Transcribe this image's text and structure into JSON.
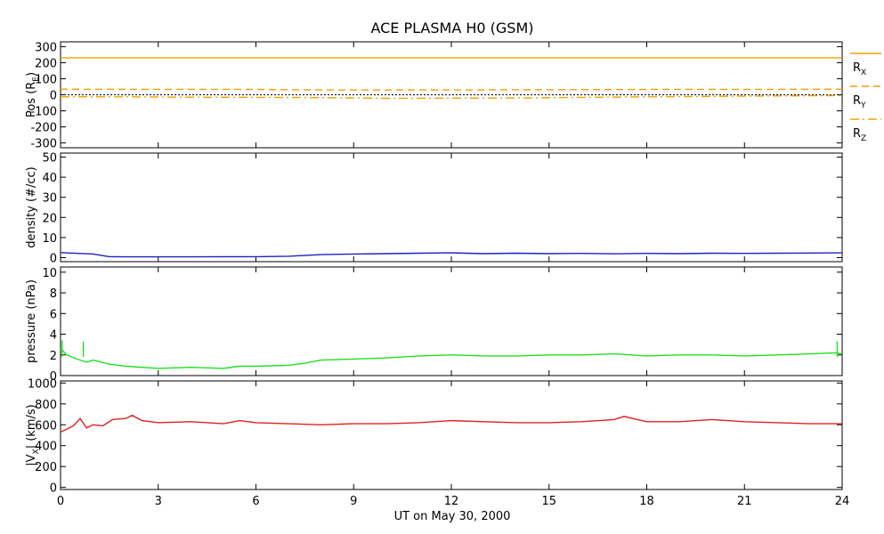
{
  "title": "ACE PLASMA H0 (GSM)",
  "xaxis": {
    "label": "UT on May 30, 2000",
    "range": [
      0,
      24
    ],
    "ticks": [
      0,
      3,
      6,
      9,
      12,
      15,
      18,
      21,
      24
    ],
    "tick_labels": [
      "0",
      "3",
      "6",
      "9",
      "12",
      "15",
      "18",
      "21",
      "24"
    ]
  },
  "legend": [
    {
      "label": "R",
      "sub": "X",
      "color": "#f0a000",
      "style": "solid"
    },
    {
      "label": "R",
      "sub": "Y",
      "color": "#f0a000",
      "style": "dashed"
    },
    {
      "label": "R",
      "sub": "Z",
      "color": "#f0a000",
      "style": "dashdot"
    }
  ],
  "chart_data": [
    {
      "type": "line",
      "ylabel": {
        "main": "Pos (R",
        "sub": "E",
        "tail": ")"
      },
      "ylim": [
        -330,
        330
      ],
      "yticks": [
        -300,
        -200,
        -100,
        0,
        100,
        200,
        300
      ],
      "zero_line": true,
      "series": [
        {
          "name": "RX",
          "color": "#f0a000",
          "style": "solid",
          "x": [
            0,
            24
          ],
          "y": [
            231,
            231
          ]
        },
        {
          "name": "RY",
          "color": "#f0a000",
          "style": "dashed",
          "x": [
            0,
            2,
            4,
            6,
            8,
            10,
            12,
            14,
            16,
            18,
            20,
            22,
            24
          ],
          "y": [
            35,
            34,
            34,
            33,
            30,
            30,
            30,
            31,
            32,
            33,
            34,
            34,
            35
          ]
        },
        {
          "name": "RZ",
          "color": "#f0a000",
          "style": "dashdot",
          "x": [
            0,
            2,
            4,
            6,
            8,
            10,
            12,
            14,
            16,
            18,
            20,
            22,
            24
          ],
          "y": [
            -12,
            -13,
            -15,
            -16,
            -18,
            -22,
            -21,
            -20,
            -16,
            -13,
            -10,
            -7,
            -5
          ]
        }
      ]
    },
    {
      "type": "line",
      "ylabel": {
        "main": "density (#/cc)"
      },
      "ylim": [
        -2,
        52
      ],
      "yticks": [
        0,
        10,
        20,
        30,
        40,
        50
      ],
      "series": [
        {
          "name": "density",
          "color": "#2020c0",
          "x": [
            0,
            1,
            1.5,
            2,
            3,
            4,
            5,
            6,
            7,
            8,
            9,
            10,
            11,
            12,
            13,
            14,
            15,
            16,
            17,
            18,
            19,
            20,
            21,
            22,
            23,
            24
          ],
          "y": [
            2.5,
            1.8,
            0.5,
            0.4,
            0.4,
            0.4,
            0.5,
            0.5,
            0.7,
            1.5,
            1.8,
            2.0,
            2.2,
            2.4,
            2.0,
            2.2,
            2.0,
            2.1,
            1.9,
            2.1,
            2.0,
            2.2,
            2.1,
            2.2,
            2.3,
            2.4
          ]
        }
      ]
    },
    {
      "type": "line",
      "ylabel": {
        "main": "pressure (nPa)"
      },
      "ylim": [
        0,
        10.5
      ],
      "yticks": [
        0,
        2,
        4,
        6,
        8,
        10
      ],
      "series": [
        {
          "name": "pressure",
          "color": "#20e020",
          "x": [
            0,
            0.2,
            0.5,
            0.8,
            1.0,
            1.5,
            2,
            3,
            4,
            5,
            5.5,
            6,
            7,
            7.5,
            8,
            9,
            10,
            11,
            12,
            13,
            14,
            15,
            16,
            17,
            18,
            19,
            20,
            21,
            22,
            23,
            23.8,
            24
          ],
          "y": [
            2.6,
            2.0,
            1.6,
            1.3,
            1.5,
            1.1,
            0.9,
            0.7,
            0.8,
            0.7,
            0.9,
            0.9,
            1.0,
            1.2,
            1.5,
            1.6,
            1.7,
            1.9,
            2.0,
            1.9,
            1.9,
            2.0,
            2.0,
            2.1,
            1.9,
            2.0,
            2.0,
            1.9,
            2.0,
            2.1,
            2.2,
            2.1
          ]
        },
        {
          "name": "pressure-spikes",
          "color": "#20e020",
          "x": [
            0.05,
            0.7,
            23.85
          ],
          "y": [
            3.4,
            3.3,
            3.3
          ]
        }
      ]
    },
    {
      "type": "line",
      "ylabel": {
        "main": "|V",
        "sub": "X",
        "tail": "| (km/s)"
      },
      "ylim": [
        -20,
        1020
      ],
      "yticks": [
        0,
        200,
        400,
        600,
        800,
        1000
      ],
      "series": [
        {
          "name": "Vx",
          "color": "#e02020",
          "x": [
            0,
            0.2,
            0.4,
            0.6,
            0.8,
            1.0,
            1.3,
            1.6,
            2.0,
            2.2,
            2.5,
            3,
            4,
            5,
            5.5,
            6,
            7,
            8,
            9,
            10,
            11,
            12,
            13,
            14,
            15,
            16,
            17,
            17.3,
            18,
            19,
            20,
            21,
            22,
            23,
            24
          ],
          "y": [
            530,
            560,
            590,
            660,
            570,
            600,
            590,
            650,
            660,
            690,
            640,
            620,
            630,
            610,
            640,
            620,
            610,
            600,
            610,
            610,
            620,
            640,
            630,
            620,
            620,
            630,
            650,
            680,
            630,
            630,
            650,
            630,
            620,
            610,
            610
          ]
        }
      ]
    }
  ]
}
